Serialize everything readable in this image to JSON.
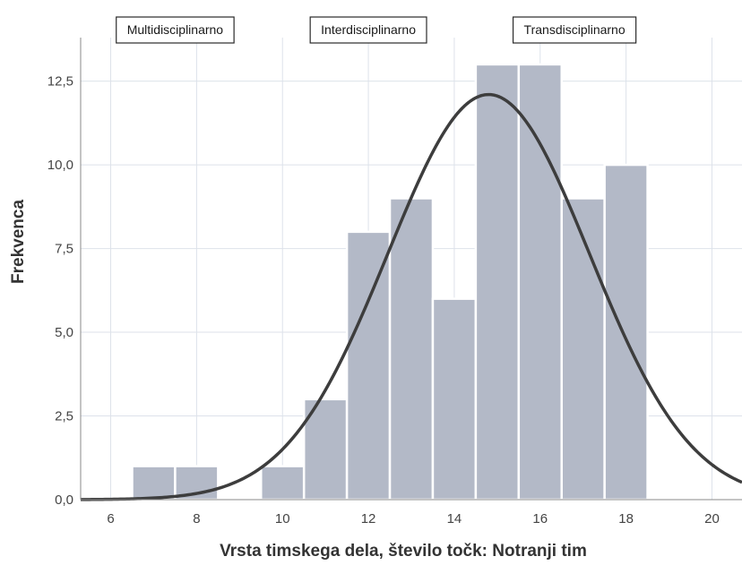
{
  "chart_data": {
    "type": "bar",
    "subtype": "histogram",
    "bin_width": 1,
    "bins": [
      {
        "start": 6.5,
        "end": 7.5,
        "value": 1
      },
      {
        "start": 7.5,
        "end": 8.5,
        "value": 1
      },
      {
        "start": 8.5,
        "end": 9.5,
        "value": 0
      },
      {
        "start": 9.5,
        "end": 10.5,
        "value": 1
      },
      {
        "start": 10.5,
        "end": 11.5,
        "value": 3
      },
      {
        "start": 11.5,
        "end": 12.5,
        "value": 8
      },
      {
        "start": 12.5,
        "end": 13.5,
        "value": 9
      },
      {
        "start": 13.5,
        "end": 14.5,
        "value": 6
      },
      {
        "start": 14.5,
        "end": 15.5,
        "value": 13
      },
      {
        "start": 15.5,
        "end": 16.5,
        "value": 13
      },
      {
        "start": 16.5,
        "end": 17.5,
        "value": 9
      },
      {
        "start": 17.5,
        "end": 18.5,
        "value": 10
      }
    ],
    "normal_curve": {
      "mean": 14.8,
      "sd": 2.35,
      "peak": 12.1
    },
    "xlim": [
      5.3,
      20.7
    ],
    "ylim": [
      0,
      13.8
    ],
    "x_ticks": [
      "6",
      "8",
      "10",
      "12",
      "14",
      "16",
      "18",
      "20"
    ],
    "x_tick_values": [
      6,
      8,
      10,
      12,
      14,
      16,
      18,
      20
    ],
    "y_ticks": [
      "0,0",
      "2,5",
      "5,0",
      "7,5",
      "10,0",
      "12,5"
    ],
    "y_tick_values": [
      0,
      2.5,
      5,
      7.5,
      10,
      12.5
    ],
    "grid": true,
    "xlabel": "Vrsta timskega dela, število točk: Notranji tim",
    "ylabel": "Frekvenca",
    "annotations": [
      {
        "text": "Multidisciplinarno",
        "x": 7.5
      },
      {
        "text": "Interdisciplinarno",
        "x": 12
      },
      {
        "text": "Transdisciplinarno",
        "x": 16.8
      }
    ],
    "colors": {
      "bar": "#b3b9c7",
      "bar_edge": "#ffffff",
      "curve": "#3d3d3d",
      "grid": "#dde2ea",
      "axis": "#8a8a8a"
    }
  }
}
